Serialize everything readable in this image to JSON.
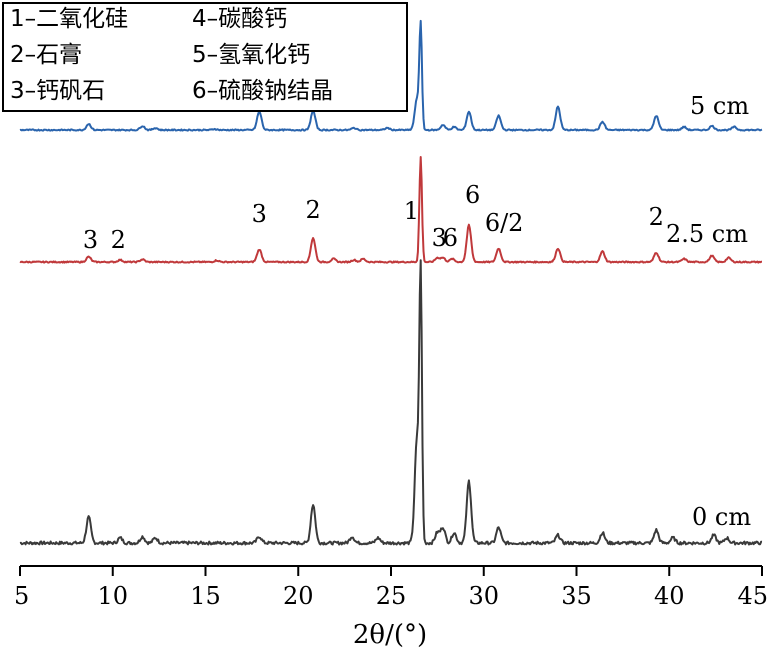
{
  "chart_data": {
    "type": "line",
    "xlabel": "2θ/(°)",
    "xlim": [
      5,
      45
    ],
    "xticks": [
      5,
      10,
      15,
      20,
      25,
      30,
      35,
      40,
      45
    ],
    "grid": false,
    "legend_placement": "top-left",
    "legend": [
      "1–二氧化硅",
      "4–碳酸钙",
      "2–石膏",
      "5–氢氧化钙",
      "3–钙矾石",
      "6–硫酸钠结晶"
    ],
    "series": [
      {
        "name": "0 cm",
        "color": "#3a3a3a",
        "peaks": [
          {
            "x": 8.7,
            "h": 0.1
          },
          {
            "x": 10.4,
            "h": 0.02
          },
          {
            "x": 11.6,
            "h": 0.025
          },
          {
            "x": 12.3,
            "h": 0.02
          },
          {
            "x": 17.9,
            "h": 0.025
          },
          {
            "x": 20.8,
            "h": 0.15
          },
          {
            "x": 22.9,
            "h": 0.025
          },
          {
            "x": 24.3,
            "h": 0.02
          },
          {
            "x": 26.4,
            "h": 0.4
          },
          {
            "x": 26.6,
            "h": 1.0
          },
          {
            "x": 27.5,
            "h": 0.04
          },
          {
            "x": 27.8,
            "h": 0.06
          },
          {
            "x": 28.4,
            "h": 0.04
          },
          {
            "x": 29.2,
            "h": 0.24
          },
          {
            "x": 30.8,
            "h": 0.06
          },
          {
            "x": 34.0,
            "h": 0.03
          },
          {
            "x": 36.4,
            "h": 0.04
          },
          {
            "x": 39.3,
            "h": 0.05
          },
          {
            "x": 40.2,
            "h": 0.02
          },
          {
            "x": 42.4,
            "h": 0.03
          },
          {
            "x": 43.1,
            "h": 0.02
          }
        ]
      },
      {
        "name": "2.5 cm",
        "color": "#c0393b",
        "peaks": [
          {
            "x": 8.7,
            "h": 0.05
          },
          {
            "x": 10.4,
            "h": 0.02
          },
          {
            "x": 11.6,
            "h": 0.025
          },
          {
            "x": 15.6,
            "h": 0.015
          },
          {
            "x": 17.9,
            "h": 0.12
          },
          {
            "x": 20.8,
            "h": 0.23
          },
          {
            "x": 21.9,
            "h": 0.03
          },
          {
            "x": 23.0,
            "h": 0.02
          },
          {
            "x": 23.5,
            "h": 0.03
          },
          {
            "x": 26.6,
            "h": 1.0
          },
          {
            "x": 27.5,
            "h": 0.04
          },
          {
            "x": 27.8,
            "h": 0.04
          },
          {
            "x": 28.3,
            "h": 0.03
          },
          {
            "x": 29.2,
            "h": 0.35
          },
          {
            "x": 30.8,
            "h": 0.13
          },
          {
            "x": 34.0,
            "h": 0.13
          },
          {
            "x": 36.4,
            "h": 0.1
          },
          {
            "x": 39.3,
            "h": 0.09
          },
          {
            "x": 40.8,
            "h": 0.03
          },
          {
            "x": 42.3,
            "h": 0.06
          },
          {
            "x": 43.2,
            "h": 0.04
          }
        ]
      },
      {
        "name": "5 cm",
        "color": "#2a64ad",
        "peaks": [
          {
            "x": 8.7,
            "h": 0.06
          },
          {
            "x": 11.6,
            "h": 0.04
          },
          {
            "x": 12.3,
            "h": 0.02
          },
          {
            "x": 15.5,
            "h": 0.01
          },
          {
            "x": 17.9,
            "h": 0.18
          },
          {
            "x": 20.8,
            "h": 0.19
          },
          {
            "x": 23.0,
            "h": 0.02
          },
          {
            "x": 24.8,
            "h": 0.02
          },
          {
            "x": 26.4,
            "h": 0.3
          },
          {
            "x": 26.6,
            "h": 1.0
          },
          {
            "x": 27.8,
            "h": 0.05
          },
          {
            "x": 28.4,
            "h": 0.03
          },
          {
            "x": 29.2,
            "h": 0.18
          },
          {
            "x": 30.8,
            "h": 0.14
          },
          {
            "x": 34.0,
            "h": 0.23
          },
          {
            "x": 36.4,
            "h": 0.08
          },
          {
            "x": 39.3,
            "h": 0.14
          },
          {
            "x": 40.8,
            "h": 0.03
          },
          {
            "x": 42.3,
            "h": 0.04
          },
          {
            "x": 43.5,
            "h": 0.03
          }
        ]
      }
    ],
    "annotations": [
      {
        "text": "3",
        "x": 8.8,
        "series": "2.5 cm"
      },
      {
        "text": "2",
        "x": 10.3,
        "series": "2.5 cm"
      },
      {
        "text": "3",
        "x": 17.9,
        "series": "2.5 cm"
      },
      {
        "text": "2",
        "x": 20.8,
        "series": "2.5 cm"
      },
      {
        "text": "1",
        "x": 26.1,
        "series": "2.5 cm"
      },
      {
        "text": "3",
        "x": 27.6,
        "series": "2.5 cm"
      },
      {
        "text": "6",
        "x": 28.2,
        "series": "2.5 cm"
      },
      {
        "text": "6",
        "x": 29.4,
        "series": "2.5 cm"
      },
      {
        "text": "6/2",
        "x": 31.1,
        "series": "2.5 cm"
      },
      {
        "text": "2",
        "x": 39.3,
        "series": "2.5 cm"
      }
    ]
  }
}
